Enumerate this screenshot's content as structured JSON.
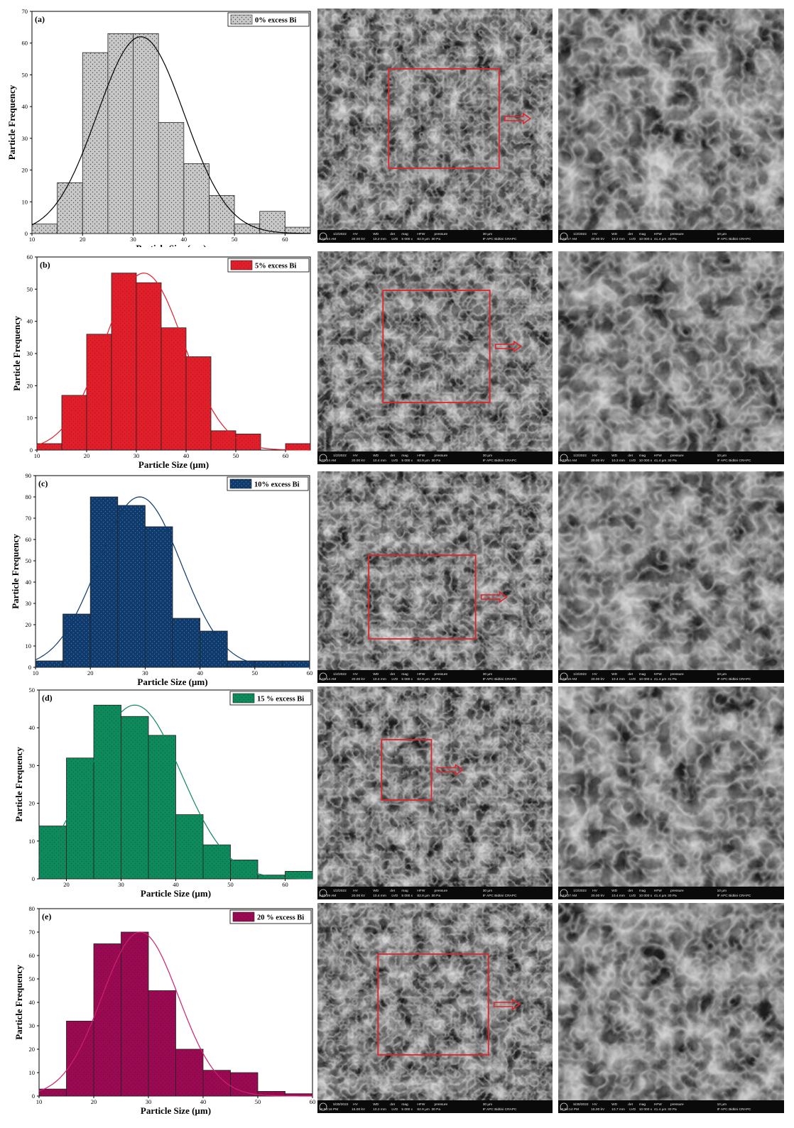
{
  "figure": {
    "panels": [
      {
        "panel_label": "(a)",
        "legend": "0% excess Bi",
        "color": "#c8c8c8",
        "fit_color": "#000000",
        "dots": "#4a4a4a",
        "sem_data_bar": [
          "1/2/2022",
          "HV",
          "WD",
          "det",
          "mag",
          "HFW",
          "pressure",
          "30 µm",
          "9:34:04 AM",
          "20.00 kV",
          "10.2 mm",
          "LVD",
          "5 000 x",
          "82.9 µm",
          "30 Pa",
          "IF APC Bidtini CRAPC"
        ],
        "sem_zoom_bar": [
          "1/2/2022",
          "HV",
          "WD",
          "det",
          "mag",
          "HFW",
          "pressure",
          "10 µm",
          "9:36:17 AM",
          "20.00 kV",
          "10.2 mm",
          "LVD",
          "10 000 x",
          "41.4 µm",
          "30 Pa",
          "IF APC Bidtini CRAPC"
        ]
      },
      {
        "panel_label": "(b)",
        "legend": "5% excess Bi",
        "color": "#e01f2b",
        "fit_color": "#e01f2b",
        "dots": "#b01520",
        "sem_data_bar": [
          "1/2/2022",
          "HV",
          "WD",
          "det",
          "mag",
          "HFW",
          "pressure",
          "30 µm",
          "9:37:24 AM",
          "20.00 kV",
          "10.4 mm",
          "LVD",
          "5 000 x",
          "82.9 µm",
          "30 Pa",
          "IF APC Bidtini CRAPC"
        ],
        "sem_zoom_bar": [
          "1/2/2022",
          "HV",
          "WD",
          "det",
          "mag",
          "HFW",
          "pressure",
          "10 µm",
          "9:37:54 AM",
          "20.00 kV",
          "10.3 mm",
          "LVD",
          "10 000 x",
          "41.4 µm",
          "30 Pa",
          "IF APC Bidtini CRAPC"
        ]
      },
      {
        "panel_label": "(c)",
        "legend": "10% excess Bi",
        "color": "#0e3a6c",
        "fit_color": "#0e3a6c",
        "dots": "#4a6fa0",
        "sem_data_bar": [
          "1/2/2022",
          "HV",
          "WD",
          "det",
          "mag",
          "HFW",
          "pressure",
          "30 µm",
          "9:37:14 AM",
          "20.00 kV",
          "10.4 mm",
          "LVD",
          "5 000 x",
          "82.9 µm",
          "30 Pa",
          "IF APC Bidtini CRAPC"
        ],
        "sem_zoom_bar": [
          "1/2/2022",
          "HV",
          "WD",
          "det",
          "mag",
          "HFW",
          "pressure",
          "10 µm",
          "9:38:19 AM",
          "20.00 kV",
          "10.4 mm",
          "LVD",
          "10 000 x",
          "41.4 µm",
          "31 Pa",
          "IF APC Bidtini CRAPC"
        ]
      },
      {
        "panel_label": "(d)",
        "legend": "15 % excess Bi",
        "color": "#0e8a5c",
        "fit_color": "#0e8a5c",
        "dots": "#0a6644",
        "sem_data_bar": [
          "1/2/2022",
          "HV",
          "WD",
          "det",
          "mag",
          "HFW",
          "pressure",
          "30 µm",
          "9:40:39 AM",
          "20.00 kV",
          "10.4 mm",
          "LVD",
          "5 000 x",
          "82.9 µm",
          "30 Pa",
          "IF APC Bidtini CRAPC"
        ],
        "sem_zoom_bar": [
          "1/2/2022",
          "HV",
          "WD",
          "det",
          "mag",
          "HFW",
          "pressure",
          "10 µm",
          "9:41:27 AM",
          "20.00 kV",
          "10.4 mm",
          "LVD",
          "10 000 x",
          "41.4 µm",
          "30 Pa",
          "IF APC Bidtini CRAPC"
        ]
      },
      {
        "panel_label": "(e)",
        "legend": "20 % excess Bi",
        "color": "#9a0a52",
        "fit_color": "#d02070",
        "dots": "#7a0840",
        "sem_data_bar": [
          "5/30/2022",
          "HV",
          "WD",
          "det",
          "mag",
          "HFW",
          "pressure",
          "30 µm",
          "12:53:16 PM",
          "15.00 kV",
          "10.2 mm",
          "LVD",
          "5 000 x",
          "82.9 µm",
          "30 Pa",
          "IF APC Bidtini CRAPC"
        ],
        "sem_zoom_bar": [
          "5/30/2022",
          "HV",
          "WD",
          "det",
          "mag",
          "HFW",
          "pressure",
          "10 µm",
          "12:56:14 PM",
          "15.00 kV",
          "10.7 mm",
          "LVD",
          "10 000 x",
          "41.4 µm",
          "30 Pa",
          "IF APC Bidtini CRAPC"
        ]
      }
    ]
  },
  "chart_data": [
    {
      "type": "bar",
      "panel": "(a)",
      "legend": "0% excess Bi",
      "xlabel": "Particle Size (µm)",
      "ylabel": "Particle Frequency",
      "xlim": [
        10,
        65
      ],
      "ylim": [
        0,
        70
      ],
      "xticks": [
        10,
        20,
        30,
        40,
        50,
        60
      ],
      "yticks": [
        0,
        10,
        20,
        30,
        40,
        50,
        60,
        70
      ],
      "bin_width": 5,
      "bin_starts": [
        10,
        15,
        20,
        25,
        30,
        35,
        40,
        45,
        50,
        55,
        60
      ],
      "values": [
        3,
        16,
        57,
        63,
        63,
        35,
        22,
        12,
        3,
        7,
        2
      ],
      "fit": {
        "type": "normal",
        "mean": 31.5,
        "sd": 8.6,
        "peak": 62
      }
    },
    {
      "type": "bar",
      "panel": "(b)",
      "legend": "5% excess Bi",
      "xlabel": "Particle Size (µm)",
      "ylabel": "Particle Frequency",
      "xlim": [
        10,
        65
      ],
      "ylim": [
        0,
        60
      ],
      "xticks": [
        10,
        20,
        30,
        40,
        50,
        60
      ],
      "yticks": [
        0,
        10,
        20,
        30,
        40,
        50,
        60
      ],
      "bin_width": 5,
      "bin_starts": [
        10,
        15,
        20,
        25,
        30,
        35,
        40,
        45,
        50,
        55,
        60
      ],
      "values": [
        2,
        17,
        36,
        55,
        52,
        38,
        29,
        6,
        5,
        0,
        2
      ],
      "fit": {
        "type": "normal",
        "mean": 31.5,
        "sd": 8.0,
        "peak": 55
      }
    },
    {
      "type": "bar",
      "panel": "(c)",
      "legend": "10% excess Bi",
      "xlabel": "Particle Size (µm)",
      "ylabel": "Particle Frequency",
      "xlim": [
        10,
        60
      ],
      "ylim": [
        0,
        90
      ],
      "xticks": [
        10,
        20,
        30,
        40,
        50,
        60
      ],
      "yticks": [
        0,
        10,
        20,
        30,
        40,
        50,
        60,
        70,
        80,
        90
      ],
      "bin_width": 5,
      "bin_starts": [
        10,
        15,
        20,
        25,
        30,
        35,
        40,
        45,
        50,
        55
      ],
      "values": [
        3,
        25,
        80,
        76,
        66,
        23,
        17,
        3,
        3,
        3
      ],
      "fit": {
        "type": "normal",
        "mean": 29.0,
        "sd": 7.6,
        "peak": 80
      }
    },
    {
      "type": "bar",
      "panel": "(d)",
      "legend": "15 % excess Bi",
      "xlabel": "Particle Size (µm)",
      "ylabel": "Particle Frequency",
      "xlim": [
        15,
        65
      ],
      "ylim": [
        0,
        50
      ],
      "xticks": [
        20,
        30,
        40,
        50,
        60
      ],
      "yticks": [
        0,
        10,
        20,
        30,
        40,
        50
      ],
      "bin_width": 5,
      "bin_starts": [
        15,
        20,
        25,
        30,
        35,
        40,
        45,
        50,
        55,
        60
      ],
      "values": [
        14,
        32,
        46,
        43,
        38,
        17,
        9,
        5,
        1,
        2
      ],
      "fit": {
        "type": "normal",
        "mean": 32.5,
        "sd": 8.5,
        "peak": 46
      }
    },
    {
      "type": "bar",
      "panel": "(e)",
      "legend": "20 % excess Bi",
      "xlabel": "Particle Size (µm)",
      "ylabel": "Particle Frequency",
      "xlim": [
        10,
        60
      ],
      "ylim": [
        0,
        80
      ],
      "xticks": [
        10,
        20,
        30,
        40,
        50,
        60
      ],
      "yticks": [
        0,
        10,
        20,
        30,
        40,
        50,
        60,
        70,
        80
      ],
      "bin_width": 5,
      "bin_starts": [
        10,
        15,
        20,
        25,
        30,
        35,
        40,
        45,
        50,
        55
      ],
      "values": [
        3,
        32,
        65,
        70,
        45,
        20,
        11,
        10,
        2,
        1
      ],
      "fit": {
        "type": "normal",
        "mean": 28.5,
        "sd": 7.0,
        "peak": 70
      }
    }
  ]
}
